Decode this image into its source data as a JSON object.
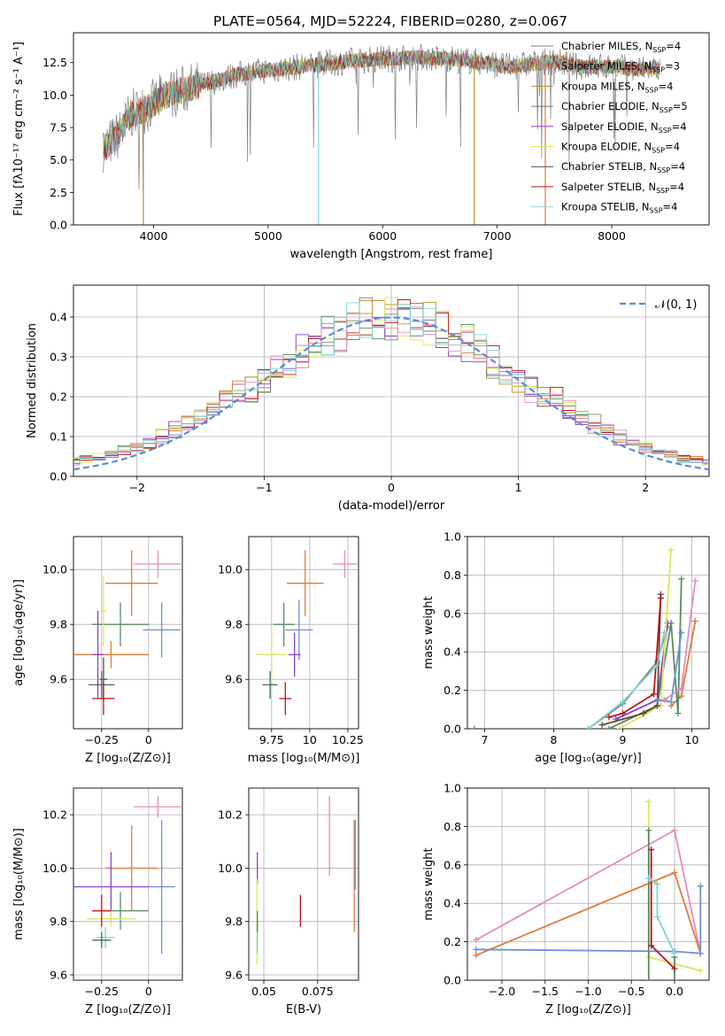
{
  "title": "PLATE=0564, MJD=52224, FIBERID=0280, z=0.067",
  "colors": [
    "#7f7f7f",
    "#e07b39",
    "#b8902c",
    "#5b8a63",
    "#8c3fc9",
    "#d7e862",
    "#5a4b3d",
    "#b5171a",
    "#a5cde0",
    "#6b8fd6",
    "#e58bbf",
    "#7dd5d5",
    "#3e6b5a"
  ],
  "chart_data": [
    {
      "id": "spectrum",
      "type": "line",
      "xlabel": "wavelength [Angstrom, rest frame]",
      "ylabel": "Flux [fλ10⁻¹⁷ erg cm⁻² s⁻¹ A⁻¹]",
      "xlim": [
        3300,
        8850
      ],
      "ylim": [
        0,
        14.8
      ],
      "xticks": [
        4000,
        5000,
        6000,
        7000,
        8000
      ],
      "yticks": [
        0.0,
        2.5,
        5.0,
        7.5,
        10.0,
        12.5
      ],
      "legend_position": "right",
      "legend": [
        {
          "label": "Chabrier MILES, N",
          "sub": "SSP",
          "n": "=4"
        },
        {
          "label": "Salpeter MILES, N",
          "sub": "SSP",
          "n": "=3"
        },
        {
          "label": "Kroupa MILES, N",
          "sub": "SSP",
          "n": "=4"
        },
        {
          "label": "Chabrier ELODIE, N",
          "sub": "SSP",
          "n": "=5"
        },
        {
          "label": "Salpeter ELODIE, N",
          "sub": "SSP",
          "n": "=4"
        },
        {
          "label": "Kroupa ELODIE, N",
          "sub": "SSP",
          "n": "=4"
        },
        {
          "label": "Chabrier STELIB, N",
          "sub": "SSP",
          "n": "=4"
        },
        {
          "label": "Salpeter STELIB, N",
          "sub": "SSP",
          "n": "=4"
        },
        {
          "label": "Kroupa STELIB, N",
          "sub": "SSP",
          "n": "=4"
        }
      ],
      "continuum": [
        [
          3580,
          6.0
        ],
        [
          3700,
          7.0
        ],
        [
          3800,
          8.5
        ],
        [
          3950,
          9.0
        ],
        [
          4100,
          10.0
        ],
        [
          4300,
          10.5
        ],
        [
          4500,
          11.0
        ],
        [
          4700,
          11.5
        ],
        [
          4900,
          11.8
        ],
        [
          5100,
          12.0
        ],
        [
          5400,
          12.3
        ],
        [
          5700,
          12.6
        ],
        [
          6000,
          12.8
        ],
        [
          6300,
          12.9
        ],
        [
          6600,
          12.8
        ],
        [
          6900,
          12.5
        ],
        [
          7100,
          12.2
        ],
        [
          7300,
          12.4
        ],
        [
          7500,
          12.6
        ],
        [
          7700,
          12.2
        ],
        [
          8000,
          12.2
        ],
        [
          8200,
          12.0
        ],
        [
          8400,
          12.1
        ]
      ],
      "spikes": [
        [
          3910,
          0
        ],
        [
          5440,
          0
        ],
        [
          6800,
          0
        ],
        [
          7420,
          0
        ]
      ]
    },
    {
      "id": "residuals",
      "type": "histogram",
      "xlabel": "(data-model)/error",
      "ylabel": "Normed distribution",
      "xlim": [
        -2.5,
        2.5
      ],
      "ylim": [
        0,
        0.48
      ],
      "xticks": [
        -2,
        -1,
        0,
        1,
        2
      ],
      "yticks": [
        0.0,
        0.1,
        0.2,
        0.3,
        0.4
      ],
      "bin_width": 0.1,
      "legend": "𝒩(0, 1)",
      "legend_position": "top-right",
      "gaussian": {
        "mu": 0,
        "sigma": 1,
        "color": "#5b8bd9"
      }
    },
    {
      "id": "age-vs-z",
      "type": "errorbar",
      "xlabel": "Z [log₁₀(Z/Z⊙)]",
      "ylabel": "age  [log₁₀(age/yr)]",
      "xlim": [
        -0.4,
        0.18
      ],
      "ylim": [
        9.42,
        10.12
      ],
      "xticks": [
        -0.25,
        0.0
      ],
      "yticks": [
        9.6,
        9.8,
        10.0
      ],
      "points": [
        {
          "x": 0.05,
          "y": 10.02,
          "xerr": 0.13,
          "yerr": 0.05,
          "c": 10
        },
        {
          "x": -0.09,
          "y": 9.95,
          "xerr": 0.14,
          "yerr": 0.12,
          "c": 1
        },
        {
          "x": 0.07,
          "y": 9.78,
          "xerr": 0.1,
          "yerr": 0.1,
          "c": 9
        },
        {
          "x": -0.15,
          "y": 9.8,
          "xerr": 0.15,
          "yerr": 0.08,
          "c": 3
        },
        {
          "x": -0.2,
          "y": 9.69,
          "xerr": 0.2,
          "yerr": 0.05,
          "c": 1
        },
        {
          "x": -0.27,
          "y": 9.69,
          "xerr": 0.03,
          "yerr": 0.16,
          "c": 4
        },
        {
          "x": -0.24,
          "y": 9.6,
          "xerr": 0.02,
          "yerr": 0.08,
          "c": 6
        },
        {
          "x": -0.25,
          "y": 9.58,
          "xerr": 0.07,
          "yerr": 0.05,
          "c": 12
        },
        {
          "x": -0.24,
          "y": 9.53,
          "xerr": 0.06,
          "yerr": 0.06,
          "c": 7
        },
        {
          "x": -0.24,
          "y": 9.85,
          "xerr": 0.015,
          "yerr": 0.13,
          "c": 5
        }
      ]
    },
    {
      "id": "age-vs-mass",
      "type": "errorbar",
      "xlabel": "mass [log₁₀(M/M⊙)]",
      "ylabel": "",
      "xlim": [
        9.6,
        10.32
      ],
      "ylim": [
        9.42,
        10.12
      ],
      "xticks": [
        9.75,
        10.0,
        10.25
      ],
      "yticks": [
        9.6,
        9.8,
        10.0
      ],
      "points": [
        {
          "x": 10.23,
          "y": 10.02,
          "xerr": 0.08,
          "yerr": 0.05,
          "c": 10
        },
        {
          "x": 9.97,
          "y": 9.95,
          "xerr": 0.12,
          "yerr": 0.12,
          "c": 1
        },
        {
          "x": 9.93,
          "y": 9.78,
          "xerr": 0.09,
          "yerr": 0.11,
          "c": 9
        },
        {
          "x": 9.83,
          "y": 9.8,
          "xerr": 0.07,
          "yerr": 0.08,
          "c": 3
        },
        {
          "x": 9.75,
          "y": 9.69,
          "xerr": 0.1,
          "yerr": 0.1,
          "c": 5
        },
        {
          "x": 9.9,
          "y": 9.69,
          "xerr": 0.04,
          "yerr": 0.08,
          "c": 4
        },
        {
          "x": 9.74,
          "y": 9.58,
          "xerr": 0.05,
          "yerr": 0.05,
          "c": 12
        },
        {
          "x": 9.84,
          "y": 9.53,
          "xerr": 0.04,
          "yerr": 0.06,
          "c": 7
        }
      ]
    },
    {
      "id": "weight-vs-age",
      "type": "line",
      "xlabel": "age  [log₁₀(age/yr)]",
      "ylabel": "mass weight",
      "xlim": [
        6.75,
        10.25
      ],
      "ylim": [
        0,
        1.0
      ],
      "xticks": [
        7,
        8,
        9,
        10
      ],
      "yticks": [
        0.0,
        0.2,
        0.4,
        0.6,
        0.8,
        1.0
      ],
      "series": [
        {
          "c": 0,
          "x": [
            6.85,
            8.5,
            9.0,
            9.5,
            9.65
          ],
          "y": [
            0.0,
            0.0,
            0.13,
            0.35,
            0.53
          ]
        },
        {
          "c": 1,
          "x": [
            9.7,
            9.85,
            10.05
          ],
          "y": [
            0.12,
            0.17,
            0.56
          ]
        },
        {
          "c": 3,
          "x": [
            8.8,
            9.5,
            9.7,
            9.8,
            9.85
          ],
          "y": [
            0.0,
            0.12,
            0.55,
            0.08,
            0.78
          ]
        },
        {
          "c": 4,
          "x": [
            8.9,
            9.5,
            9.65
          ],
          "y": [
            0.05,
            0.15,
            0.55
          ]
        },
        {
          "c": 5,
          "x": [
            8.95,
            9.55,
            9.7
          ],
          "y": [
            0.0,
            0.12,
            0.93
          ]
        },
        {
          "c": 6,
          "x": [
            8.7,
            9.3,
            9.5,
            9.55
          ],
          "y": [
            0.02,
            0.08,
            0.12,
            0.7
          ]
        },
        {
          "c": 7,
          "x": [
            8.8,
            9.0,
            9.45,
            9.55
          ],
          "y": [
            0.06,
            0.08,
            0.18,
            0.68
          ]
        },
        {
          "c": 9,
          "x": [
            9.5,
            9.7,
            9.85
          ],
          "y": [
            0.15,
            0.14,
            0.5
          ]
        },
        {
          "c": 10,
          "x": [
            9.6,
            9.85,
            10.05
          ],
          "y": [
            0.15,
            0.21,
            0.77
          ]
        },
        {
          "c": 11,
          "x": [
            8.5,
            9.0,
            9.5,
            9.6
          ],
          "y": [
            0.0,
            0.14,
            0.33,
            0.5
          ]
        }
      ]
    },
    {
      "id": "mass-vs-z",
      "type": "errorbar",
      "xlabel": "Z [log₁₀(Z/Z⊙)]",
      "ylabel": "mass [log₁₀(M/M⊙)]",
      "xlim": [
        -0.4,
        0.18
      ],
      "ylim": [
        9.58,
        10.3
      ],
      "xticks": [
        -0.25,
        0.0
      ],
      "yticks": [
        9.6,
        9.8,
        10.0,
        10.2
      ],
      "points": [
        {
          "x": 0.05,
          "y": 10.23,
          "xerr": 0.13,
          "yerr": 0.04,
          "c": 10
        },
        {
          "x": -0.09,
          "y": 10.0,
          "xerr": 0.14,
          "yerr": 0.16,
          "c": 1
        },
        {
          "x": 0.07,
          "y": 9.93,
          "xerr": 0.07,
          "yerr": 0.25,
          "c": 9
        },
        {
          "x": -0.2,
          "y": 9.93,
          "xerr": 0.2,
          "yerr": 0.13,
          "c": 4
        },
        {
          "x": -0.15,
          "y": 9.84,
          "xerr": 0.15,
          "yerr": 0.07,
          "c": 3
        },
        {
          "x": -0.2,
          "y": 9.81,
          "xerr": 0.13,
          "yerr": 0.03,
          "c": 5
        },
        {
          "x": -0.25,
          "y": 9.84,
          "xerr": 0.05,
          "yerr": 0.06,
          "c": 7
        },
        {
          "x": -0.23,
          "y": 9.74,
          "xerr": 0.05,
          "yerr": 0.04,
          "c": 11
        },
        {
          "x": -0.25,
          "y": 9.73,
          "xerr": 0.05,
          "yerr": 0.03,
          "c": 12
        }
      ]
    },
    {
      "id": "mass-vs-ebv",
      "type": "errorbar",
      "xlabel": "E(B-V)",
      "ylabel": "",
      "xlim": [
        0.043,
        0.094
      ],
      "ylim": [
        9.58,
        10.3
      ],
      "xticks": [
        0.05,
        0.075
      ],
      "yticks": [
        9.6,
        9.8,
        10.0,
        10.2
      ],
      "points": [
        {
          "x": 0.0805,
          "y": 10.12,
          "xerr": 0,
          "yerr": 0.15,
          "c": 10
        },
        {
          "x": 0.092,
          "y": 9.97,
          "xerr": 0,
          "yerr": 0.21,
          "c": 1
        },
        {
          "x": 0.0925,
          "y": 10.05,
          "xerr": 0,
          "yerr": 0.13,
          "c": 9
        },
        {
          "x": 0.067,
          "y": 9.84,
          "xerr": 0,
          "yerr": 0.06,
          "c": 7
        },
        {
          "x": 0.047,
          "y": 10.0,
          "xerr": 0,
          "yerr": 0.06,
          "c": 4
        },
        {
          "x": 0.0468,
          "y": 9.8,
          "xerr": 0,
          "yerr": 0.16,
          "c": 5
        },
        {
          "x": 0.047,
          "y": 9.75,
          "xerr": 0,
          "yerr": 0.07,
          "c": 11
        },
        {
          "x": 0.047,
          "y": 9.8,
          "xerr": 0,
          "yerr": 0.04,
          "c": 3
        }
      ]
    },
    {
      "id": "weight-vs-z",
      "type": "line",
      "xlabel": "Z [log₁₀(Z/Z⊙)]",
      "ylabel": "mass weight",
      "xlim": [
        -2.4,
        0.4
      ],
      "ylim": [
        0,
        1.0
      ],
      "xticks": [
        -2.0,
        -1.5,
        -1.0,
        -0.5,
        0.0
      ],
      "yticks": [
        0.0,
        0.2,
        0.4,
        0.6,
        0.8,
        1.0
      ],
      "series": [
        {
          "c": 10,
          "x": [
            -2.3,
            0.0,
            0.3
          ],
          "y": [
            0.21,
            0.78,
            0.14
          ]
        },
        {
          "c": 1,
          "x": [
            -2.3,
            0.0,
            0.3
          ],
          "y": [
            0.13,
            0.56,
            0.14
          ]
        },
        {
          "c": 9,
          "x": [
            -2.3,
            0.0,
            0.3,
            0.3
          ],
          "y": [
            0.16,
            0.15,
            0.14,
            0.49
          ]
        },
        {
          "c": 5,
          "x": [
            -0.3,
            -0.3,
            0.3
          ],
          "y": [
            0.93,
            0.12,
            0.05
          ]
        },
        {
          "c": 3,
          "x": [
            -0.3,
            -0.3,
            0.0,
            0.0
          ],
          "y": [
            0.78,
            0.0,
            0.0,
            0.12
          ]
        },
        {
          "c": 7,
          "x": [
            -0.27,
            -0.27,
            0.0
          ],
          "y": [
            0.68,
            0.18,
            0.06
          ]
        },
        {
          "c": 11,
          "x": [
            -0.3,
            -0.2,
            -0.2,
            0.0
          ],
          "y": [
            0.53,
            0.5,
            0.33,
            0.14
          ]
        }
      ]
    }
  ]
}
